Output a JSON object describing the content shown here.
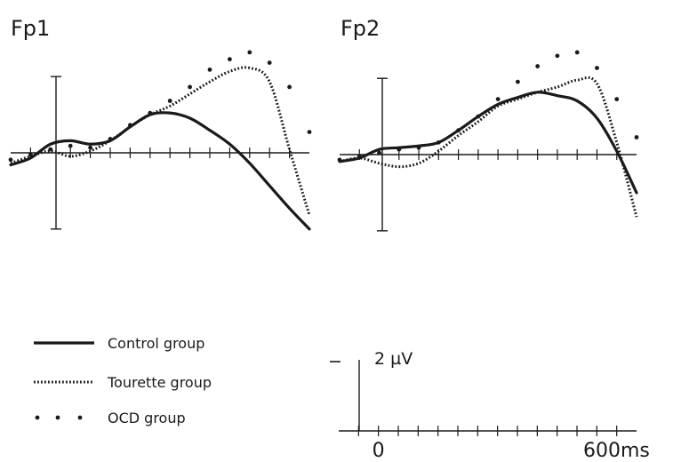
{
  "chart_data": [
    {
      "type": "line",
      "title": "Fp1",
      "x_unit": "ms",
      "xlim": [
        -100,
        650
      ],
      "ylim_uV": [
        -2.2,
        2.2
      ],
      "series": [
        {
          "name": "Control group",
          "style": "solid",
          "x": [
            -100,
            -50,
            0,
            50,
            100,
            150,
            200,
            250,
            300,
            350,
            400,
            450,
            500,
            550,
            600,
            650
          ],
          "y": [
            -0.35,
            -0.15,
            0.25,
            0.35,
            0.25,
            0.35,
            0.75,
            1.1,
            1.15,
            1.0,
            0.65,
            0.25,
            -0.3,
            -0.95,
            -1.6,
            -2.2
          ]
        },
        {
          "name": "Tourette group",
          "style": "dotted",
          "x": [
            -100,
            -50,
            0,
            50,
            100,
            150,
            200,
            250,
            300,
            350,
            400,
            450,
            500,
            550,
            600,
            650
          ],
          "y": [
            -0.3,
            -0.1,
            0.05,
            -0.1,
            0.05,
            0.35,
            0.75,
            1.1,
            1.35,
            1.7,
            2.05,
            2.35,
            2.45,
            2.05,
            0.1,
            -1.8
          ]
        },
        {
          "name": "OCD group",
          "style": "sparse-dots",
          "x": [
            -100,
            -50,
            0,
            50,
            100,
            150,
            200,
            250,
            300,
            350,
            400,
            450,
            500,
            550,
            600,
            650
          ],
          "y": [
            -0.2,
            -0.05,
            0.1,
            0.2,
            0.15,
            0.4,
            0.8,
            1.15,
            1.5,
            1.9,
            2.4,
            2.7,
            2.9,
            2.6,
            1.9,
            0.6
          ]
        }
      ]
    },
    {
      "type": "line",
      "title": "Fp2",
      "x_unit": "ms",
      "xlim": [
        -100,
        650
      ],
      "ylim_uV": [
        -2.2,
        2.2
      ],
      "series": [
        {
          "name": "Control group",
          "style": "solid",
          "x": [
            -100,
            -50,
            0,
            50,
            100,
            150,
            200,
            250,
            300,
            350,
            400,
            450,
            500,
            550,
            600,
            650
          ],
          "y": [
            -0.2,
            -0.1,
            0.15,
            0.2,
            0.25,
            0.35,
            0.7,
            1.1,
            1.45,
            1.65,
            1.8,
            1.7,
            1.55,
            1.05,
            0.1,
            -1.1
          ]
        },
        {
          "name": "Tourette group",
          "style": "dotted",
          "x": [
            -100,
            -50,
            0,
            50,
            100,
            150,
            200,
            250,
            300,
            350,
            400,
            450,
            500,
            550,
            600,
            650
          ],
          "y": [
            -0.2,
            -0.1,
            -0.25,
            -0.35,
            -0.25,
            0.1,
            0.55,
            0.95,
            1.4,
            1.6,
            1.8,
            1.95,
            2.15,
            2.05,
            0.35,
            -1.8
          ]
        },
        {
          "name": "OCD group",
          "style": "sparse-dots",
          "x": [
            -100,
            -50,
            0,
            50,
            100,
            150,
            200,
            250,
            300,
            350,
            400,
            450,
            500,
            550,
            600,
            650
          ],
          "y": [
            -0.15,
            -0.05,
            0.05,
            0.15,
            0.2,
            0.35,
            0.7,
            1.1,
            1.6,
            2.1,
            2.55,
            2.85,
            2.95,
            2.5,
            1.6,
            0.5
          ]
        }
      ]
    }
  ],
  "legend": {
    "items": [
      {
        "label": "Control group",
        "style": "solid"
      },
      {
        "label": "Tourette group",
        "style": "dotted"
      },
      {
        "label": "OCD group",
        "style": "sparse-dots"
      }
    ]
  },
  "scale_bar": {
    "amplitude_label": "2 µV",
    "zero_label": "0",
    "end_label": "600ms",
    "x_range_ms": [
      -100,
      650
    ]
  },
  "colors": {
    "ink": "#1a1a1a",
    "background": "#ffffff"
  }
}
